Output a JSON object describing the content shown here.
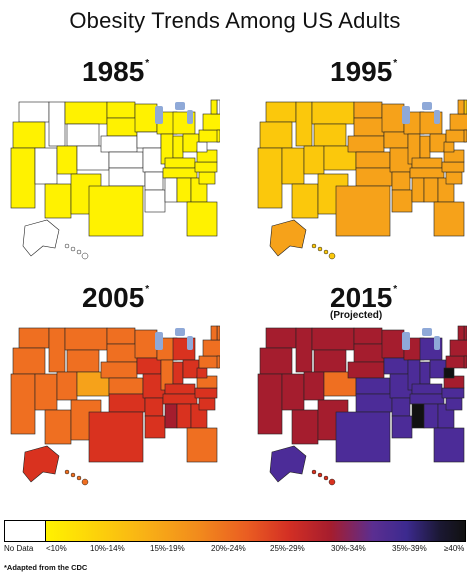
{
  "title": "Obesity Trends Among US Adults",
  "maps": [
    {
      "year": "1985",
      "marker": "*",
      "subtitle": ""
    },
    {
      "year": "1995",
      "marker": "*",
      "subtitle": ""
    },
    {
      "year": "2005",
      "marker": "*",
      "subtitle": ""
    },
    {
      "year": "2015",
      "marker": "*",
      "subtitle": "(Projected)"
    }
  ],
  "colors": {
    "no_data": "#ffffff",
    "lt10": "#fff200",
    "10_14": "#fbc80c",
    "15_19": "#f6a21a",
    "20_24": "#ef6f21",
    "25_29": "#d9321f",
    "30_34": "#a51d2e",
    "35_39": "#4c2c98",
    "ge40": "#111111",
    "lakes": "#8fa9d8"
  },
  "legend": {
    "items": [
      {
        "label": "No Data"
      },
      {
        "label": "<10%"
      },
      {
        "label": "10%-14%"
      },
      {
        "label": "15%-19%"
      },
      {
        "label": "20%-24%"
      },
      {
        "label": "25%-29%"
      },
      {
        "label": "30%-34%"
      },
      {
        "label": "35%-39%"
      },
      {
        "label": "≥40%"
      }
    ]
  },
  "footnote": "*Adapted from the CDC"
}
